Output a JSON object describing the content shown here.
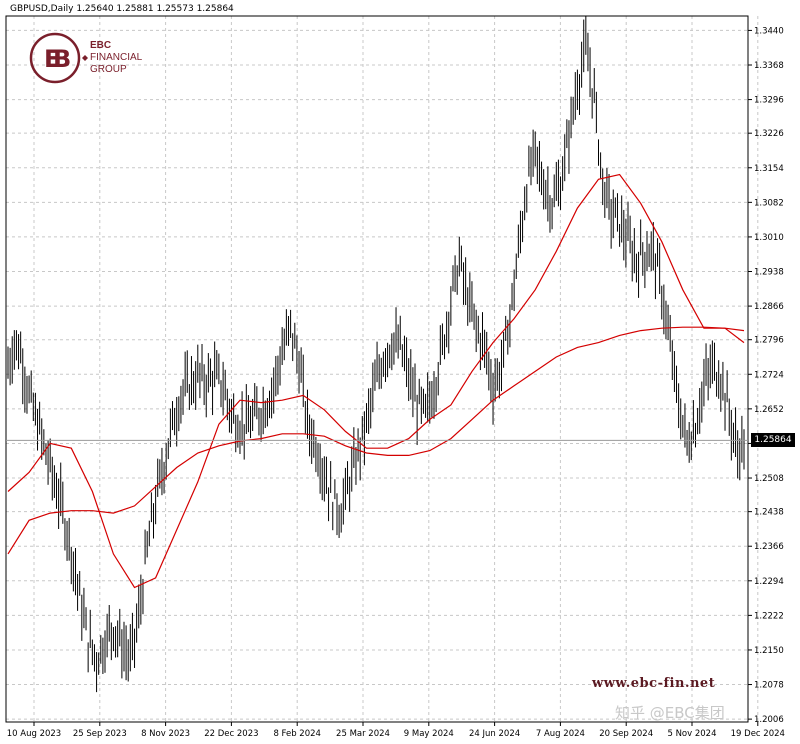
{
  "header": {
    "symbol_timeframe": "GBPUSD,Daily",
    "ohlc": "1.25640 1.25881 1.25573 1.25864"
  },
  "brand": {
    "line1": "EBC",
    "line2": "FINANCIAL",
    "line3": "GROUP"
  },
  "website": "www.ebc-fin.net",
  "watermark": "知乎 @EBC集团",
  "current_price": "1.25864",
  "colors": {
    "candles": "#000000",
    "ma": "#d40000",
    "grid": "#c8c8c8",
    "brand": "#7a1f2b"
  },
  "chart_data": {
    "type": "line",
    "title": "GBPUSD,Daily",
    "xlabel": "",
    "ylabel": "",
    "ylim": [
      1.2,
      1.347
    ],
    "y_ticks": [
      "1.3440",
      "1.3368",
      "1.3296",
      "1.3226",
      "1.3154",
      "1.3082",
      "1.3010",
      "1.2938",
      "1.2866",
      "1.2796",
      "1.2724",
      "1.2652",
      "1.2580",
      "1.2508",
      "1.2438",
      "1.2366",
      "1.2294",
      "1.2222",
      "1.2150",
      "1.2078",
      "1.2006"
    ],
    "y_tick_values": [
      1.344,
      1.3368,
      1.3296,
      1.3226,
      1.3154,
      1.3082,
      1.301,
      1.2938,
      1.2866,
      1.2796,
      1.2724,
      1.2652,
      1.258,
      1.2508,
      1.2438,
      1.2366,
      1.2294,
      1.2222,
      1.215,
      1.2078,
      1.2006
    ],
    "x_ticks": [
      "10 Aug 2023",
      "25 Sep 2023",
      "8 Nov 2023",
      "22 Dec 2023",
      "8 Feb 2024",
      "25 Mar 2024",
      "9 May 2024",
      "24 Jun 2024",
      "7 Aug 2024",
      "20 Sep 2024",
      "5 Nov 2024",
      "19 Dec 2024"
    ],
    "grid": true,
    "price_series": [
      [
        0,
        1.274
      ],
      [
        3,
        1.279
      ],
      [
        6,
        1.277
      ],
      [
        10,
        1.268
      ],
      [
        14,
        1.262
      ],
      [
        18,
        1.256
      ],
      [
        22,
        1.25
      ],
      [
        26,
        1.244
      ],
      [
        30,
        1.236
      ],
      [
        34,
        1.226
      ],
      [
        38,
        1.217
      ],
      [
        42,
        1.213
      ],
      [
        46,
        1.217
      ],
      [
        50,
        1.22
      ],
      [
        54,
        1.216
      ],
      [
        58,
        1.213
      ],
      [
        62,
        1.222
      ],
      [
        66,
        1.236
      ],
      [
        70,
        1.246
      ],
      [
        74,
        1.254
      ],
      [
        78,
        1.262
      ],
      [
        82,
        1.268
      ],
      [
        86,
        1.27
      ],
      [
        90,
        1.272
      ],
      [
        94,
        1.271
      ],
      [
        98,
        1.272
      ],
      [
        102,
        1.27
      ],
      [
        106,
        1.264
      ],
      [
        110,
        1.262
      ],
      [
        114,
        1.262
      ],
      [
        118,
        1.264
      ],
      [
        122,
        1.266
      ],
      [
        126,
        1.27
      ],
      [
        130,
        1.277
      ],
      [
        134,
        1.282
      ],
      [
        138,
        1.275
      ],
      [
        142,
        1.262
      ],
      [
        146,
        1.258
      ],
      [
        150,
        1.252
      ],
      [
        154,
        1.246
      ],
      [
        158,
        1.244
      ],
      [
        162,
        1.25
      ],
      [
        166,
        1.256
      ],
      [
        170,
        1.262
      ],
      [
        174,
        1.27
      ],
      [
        178,
        1.276
      ],
      [
        182,
        1.279
      ],
      [
        186,
        1.278
      ],
      [
        190,
        1.272
      ],
      [
        194,
        1.266
      ],
      [
        198,
        1.264
      ],
      [
        202,
        1.27
      ],
      [
        206,
        1.278
      ],
      [
        210,
        1.288
      ],
      [
        214,
        1.296
      ],
      [
        218,
        1.288
      ],
      [
        222,
        1.282
      ],
      [
        226,
        1.278
      ],
      [
        230,
        1.27
      ],
      [
        234,
        1.274
      ],
      [
        238,
        1.284
      ],
      [
        242,
        1.298
      ],
      [
        246,
        1.312
      ],
      [
        250,
        1.318
      ],
      [
        254,
        1.312
      ],
      [
        258,
        1.308
      ],
      [
        262,
        1.312
      ],
      [
        266,
        1.322
      ],
      [
        270,
        1.333
      ],
      [
        274,
        1.34
      ],
      [
        278,
        1.33
      ],
      [
        282,
        1.312
      ],
      [
        286,
        1.306
      ],
      [
        290,
        1.304
      ],
      [
        294,
        1.3
      ],
      [
        298,
        1.296
      ],
      [
        302,
        1.298
      ],
      [
        306,
        1.298
      ],
      [
        310,
        1.29
      ],
      [
        314,
        1.278
      ],
      [
        318,
        1.266
      ],
      [
        322,
        1.258
      ],
      [
        326,
        1.262
      ],
      [
        330,
        1.27
      ],
      [
        334,
        1.274
      ],
      [
        338,
        1.272
      ],
      [
        342,
        1.264
      ],
      [
        346,
        1.256
      ],
      [
        349,
        1.25864
      ]
    ],
    "series": [
      {
        "x": [
          0,
          10,
          20,
          30,
          40,
          50,
          60,
          70,
          80,
          90,
          100,
          110,
          120,
          130,
          140,
          150,
          160,
          170,
          180,
          190,
          200,
          210,
          220,
          230,
          240,
          250,
          260,
          270,
          280,
          290,
          300,
          310,
          320,
          330,
          340,
          349
        ],
        "values": [
          1.248,
          1.252,
          1.258,
          1.257,
          1.248,
          1.235,
          1.228,
          1.23,
          1.24,
          1.25,
          1.262,
          1.267,
          1.2665,
          1.267,
          1.268,
          1.265,
          1.2605,
          1.257,
          1.257,
          1.259,
          1.263,
          1.266,
          1.273,
          1.279,
          1.284,
          1.29,
          1.298,
          1.307,
          1.313,
          1.314,
          1.308,
          1.3,
          1.29,
          1.282,
          1.282,
          1.279
        ]
      },
      {
        "x": [
          0,
          10,
          20,
          30,
          40,
          50,
          60,
          70,
          80,
          90,
          100,
          110,
          120,
          130,
          140,
          150,
          160,
          170,
          180,
          190,
          200,
          210,
          220,
          230,
          240,
          250,
          260,
          270,
          280,
          290,
          300,
          310,
          320,
          330,
          340,
          349
        ],
        "values": [
          1.235,
          1.242,
          1.2435,
          1.244,
          1.244,
          1.2435,
          1.245,
          1.249,
          1.253,
          1.256,
          1.2575,
          1.2585,
          1.259,
          1.26,
          1.26,
          1.2595,
          1.2575,
          1.256,
          1.2555,
          1.2555,
          1.2565,
          1.259,
          1.263,
          1.267,
          1.27,
          1.273,
          1.276,
          1.278,
          1.279,
          1.2805,
          1.2815,
          1.282,
          1.2822,
          1.2822,
          1.282,
          1.2815
        ]
      }
    ]
  }
}
